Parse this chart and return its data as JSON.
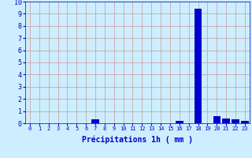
{
  "hours": [
    0,
    1,
    2,
    3,
    4,
    5,
    6,
    7,
    8,
    9,
    10,
    11,
    12,
    13,
    14,
    15,
    16,
    17,
    18,
    19,
    20,
    21,
    22,
    23
  ],
  "values": [
    0,
    0,
    0,
    0,
    0,
    0,
    0,
    0.3,
    0,
    0,
    0,
    0,
    0,
    0,
    0,
    0,
    0.2,
    0,
    9.4,
    0,
    0.6,
    0.4,
    0.3,
    0.2
  ],
  "bar_color": "#0000cc",
  "background_color": "#cceeff",
  "grid_color": "#cc9999",
  "xlabel": "Précipitations 1h ( mm )",
  "ylim": [
    0,
    10
  ],
  "xlim": [
    -0.5,
    23.5
  ],
  "xlabel_color": "#0000cc",
  "tick_color": "#0000cc",
  "xlabel_fontsize": 7,
  "tick_fontsize_x": 5,
  "tick_fontsize_y": 6
}
